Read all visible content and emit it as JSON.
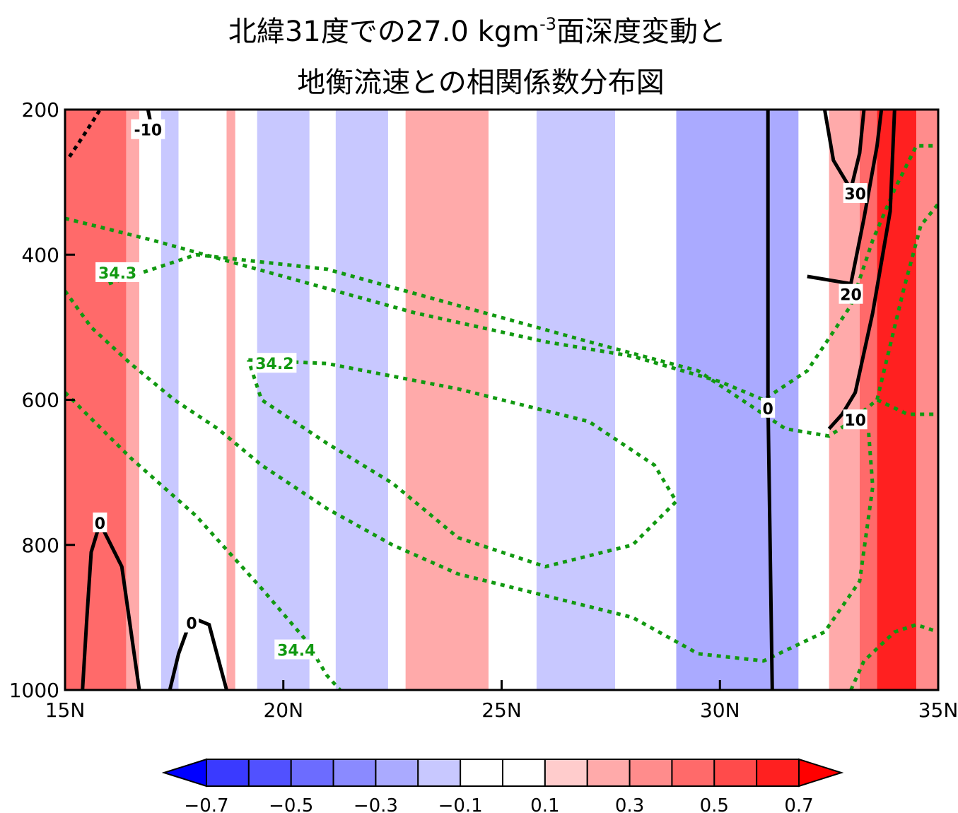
{
  "title_line1": "北緯31度での27.0 kgm",
  "title_sup": "-3",
  "title_line1_end": "面深度変動と",
  "title_line2": "地衡流速との相関係数分布図",
  "chart_data": {
    "type": "heatmap",
    "x_ticks": [
      "15N",
      "20N",
      "25N",
      "30N",
      "35N"
    ],
    "xlim": [
      15,
      35
    ],
    "y_ticks": [
      "200",
      "400",
      "600",
      "800",
      "1000"
    ],
    "ylim": [
      200,
      1000
    ],
    "y_inverted": true,
    "colorbar": {
      "tick_labels": [
        "−0.7",
        "−0.5",
        "−0.3",
        "−0.1",
        "0.1",
        "0.3",
        "0.5",
        "0.7"
      ],
      "levels": [
        -0.7,
        -0.6,
        -0.5,
        -0.4,
        -0.3,
        -0.2,
        -0.1,
        0,
        0.1,
        0.2,
        0.3,
        0.4,
        0.5,
        0.6,
        0.7
      ],
      "colors": [
        "#0000ff",
        "#3a3aff",
        "#5151ff",
        "#6c6cff",
        "#8a8aff",
        "#aaaaff",
        "#c8c8ff",
        "#ffffff",
        "#ffffff",
        "#ffcccc",
        "#ffaaaa",
        "#ff8c8c",
        "#ff6a6a",
        "#ff4b4b",
        "#ff2020",
        "#ff0000"
      ],
      "extend": "both"
    },
    "correlation_bands": [
      {
        "x0": 15.0,
        "x1": 16.4,
        "value": 0.4
      },
      {
        "x0": 16.4,
        "x1": 16.7,
        "value": 0.2
      },
      {
        "x0": 16.7,
        "x1": 17.2,
        "value": 0.0
      },
      {
        "x0": 17.2,
        "x1": 17.6,
        "value": -0.2
      },
      {
        "x0": 17.6,
        "x1": 18.7,
        "value": 0.0
      },
      {
        "x0": 18.7,
        "x1": 18.9,
        "value": 0.2
      },
      {
        "x0": 18.9,
        "x1": 19.4,
        "value": 0.0
      },
      {
        "x0": 19.4,
        "x1": 20.6,
        "value": -0.2
      },
      {
        "x0": 20.6,
        "x1": 21.2,
        "value": 0.0
      },
      {
        "x0": 21.2,
        "x1": 22.4,
        "value": -0.2
      },
      {
        "x0": 22.4,
        "x1": 22.8,
        "value": 0.0
      },
      {
        "x0": 22.8,
        "x1": 24.7,
        "value": 0.2
      },
      {
        "x0": 24.7,
        "x1": 25.8,
        "value": 0.0
      },
      {
        "x0": 25.8,
        "x1": 27.6,
        "value": -0.2
      },
      {
        "x0": 27.6,
        "x1": 29.0,
        "value": 0.0
      },
      {
        "x0": 29.0,
        "x1": 31.8,
        "value": -0.3
      },
      {
        "x0": 31.8,
        "x1": 32.5,
        "value": 0.0
      },
      {
        "x0": 32.5,
        "x1": 33.2,
        "value": 0.2
      },
      {
        "x0": 33.2,
        "x1": 33.6,
        "value": 0.4
      },
      {
        "x0": 33.6,
        "x1": 34.5,
        "value": 0.6
      },
      {
        "x0": 34.5,
        "x1": 35.0,
        "value": 0.3
      }
    ],
    "velocity_contours": [
      {
        "label": "-10",
        "points": [
          [
            15.1,
            265
          ],
          [
            15.4,
            238
          ],
          [
            15.7,
            210
          ],
          [
            15.8,
            200
          ]
        ],
        "dashed": true
      },
      {
        "label": "-10",
        "points": [
          [
            16.9,
            200
          ],
          [
            17.0,
            230
          ]
        ],
        "dashed": false
      },
      {
        "label": "0",
        "points": [
          [
            15.4,
            1000
          ],
          [
            15.5,
            900
          ],
          [
            15.6,
            810
          ],
          [
            15.8,
            770
          ],
          [
            16.3,
            830
          ],
          [
            16.7,
            1000
          ]
        ],
        "dashed": false
      },
      {
        "label": "0",
        "points": [
          [
            17.4,
            1000
          ],
          [
            17.6,
            950
          ],
          [
            17.9,
            900
          ],
          [
            18.3,
            910
          ],
          [
            18.7,
            1000
          ]
        ],
        "dashed": false
      },
      {
        "label": "0",
        "points": [
          [
            31.1,
            200
          ],
          [
            31.1,
            600
          ],
          [
            31.2,
            1000
          ]
        ],
        "dashed": false
      },
      {
        "label": "10",
        "points": [
          [
            32.5,
            640
          ],
          [
            32.8,
            620
          ],
          [
            33.1,
            590
          ],
          [
            33.5,
            480
          ],
          [
            33.9,
            340
          ],
          [
            34.0,
            200
          ]
        ],
        "dashed": false
      },
      {
        "label": "20",
        "points": [
          [
            32.0,
            430
          ],
          [
            33.0,
            440
          ],
          [
            33.3,
            350
          ],
          [
            33.6,
            250
          ],
          [
            33.7,
            200
          ]
        ],
        "dashed": false
      },
      {
        "label": "30",
        "points": [
          [
            32.4,
            200
          ],
          [
            32.6,
            270
          ],
          [
            33.0,
            310
          ],
          [
            33.2,
            260
          ],
          [
            33.3,
            200
          ]
        ],
        "dashed": false
      }
    ],
    "salinity_contours": [
      {
        "label": "34.2",
        "points": [
          [
            19.2,
            545
          ],
          [
            21.0,
            550
          ],
          [
            24.0,
            585
          ],
          [
            27.0,
            630
          ],
          [
            28.5,
            690
          ],
          [
            29.0,
            740
          ],
          [
            28.0,
            800
          ],
          [
            26.0,
            830
          ],
          [
            24.0,
            790
          ],
          [
            22.5,
            715
          ],
          [
            21.0,
            660
          ],
          [
            19.5,
            600
          ],
          [
            19.2,
            545
          ]
        ]
      },
      {
        "label": "34.3",
        "points": [
          [
            16.0,
            440
          ],
          [
            18.0,
            400
          ],
          [
            21.0,
            420
          ],
          [
            24.0,
            470
          ],
          [
            27.0,
            520
          ],
          [
            29.5,
            560
          ],
          [
            31.5,
            640
          ],
          [
            32.5,
            650
          ],
          [
            33.0,
            630
          ],
          [
            33.6,
            600
          ],
          [
            34.3,
            620
          ],
          [
            35.0,
            620
          ]
        ]
      },
      {
        "label": "34.3",
        "points": [
          [
            15.0,
            450
          ],
          [
            15.6,
            500
          ],
          [
            16.5,
            550
          ],
          [
            17.5,
            600
          ],
          [
            18.5,
            640
          ],
          [
            19.5,
            690
          ],
          [
            21.0,
            750
          ],
          [
            22.5,
            800
          ],
          [
            24.0,
            840
          ],
          [
            26.0,
            870
          ],
          [
            28.0,
            900
          ],
          [
            29.5,
            950
          ],
          [
            31.0,
            960
          ],
          [
            32.4,
            920
          ],
          [
            33.2,
            850
          ],
          [
            33.5,
            720
          ],
          [
            33.4,
            640
          ]
        ]
      },
      {
        "label": "34.4",
        "points": [
          [
            15.0,
            590
          ],
          [
            16.5,
            680
          ],
          [
            18.0,
            760
          ],
          [
            19.5,
            860
          ],
          [
            20.5,
            930
          ],
          [
            21.0,
            980
          ],
          [
            21.3,
            1000
          ]
        ]
      },
      {
        "label": "34.3",
        "points": [
          [
            15.0,
            350
          ],
          [
            17.0,
            380
          ],
          [
            20.0,
            430
          ],
          [
            23.0,
            480
          ],
          [
            26.0,
            520
          ],
          [
            28.0,
            540
          ],
          [
            30.0,
            575
          ],
          [
            31.0,
            600
          ],
          [
            32.0,
            560
          ],
          [
            33.0,
            470
          ],
          [
            33.5,
            380
          ],
          [
            34.0,
            310
          ],
          [
            34.5,
            250
          ],
          [
            35.0,
            250
          ]
        ]
      },
      {
        "label": "34.4",
        "points": [
          [
            33.0,
            1000
          ],
          [
            33.3,
            960
          ],
          [
            34.0,
            920
          ],
          [
            34.5,
            910
          ],
          [
            35.0,
            920
          ]
        ]
      },
      {
        "label": "34.4",
        "points": [
          [
            33.6,
            600
          ],
          [
            33.8,
            550
          ],
          [
            34.2,
            450
          ],
          [
            34.6,
            360
          ],
          [
            35.0,
            330
          ]
        ]
      }
    ],
    "contour_labels": [
      {
        "text": "-10",
        "x": 16.9,
        "y": 228
      },
      {
        "text": "0",
        "x": 15.8,
        "y": 770
      },
      {
        "text": "0",
        "x": 17.9,
        "y": 908
      },
      {
        "text": "0",
        "x": 31.1,
        "y": 612
      },
      {
        "text": "10",
        "x": 33.1,
        "y": 628
      },
      {
        "text": "20",
        "x": 33.0,
        "y": 455
      },
      {
        "text": "30",
        "x": 33.1,
        "y": 316
      },
      {
        "text": "34.3",
        "x": 16.2,
        "y": 425
      },
      {
        "text": "34.2",
        "x": 19.8,
        "y": 550
      },
      {
        "text": "34.4",
        "x": 20.3,
        "y": 945
      }
    ]
  }
}
